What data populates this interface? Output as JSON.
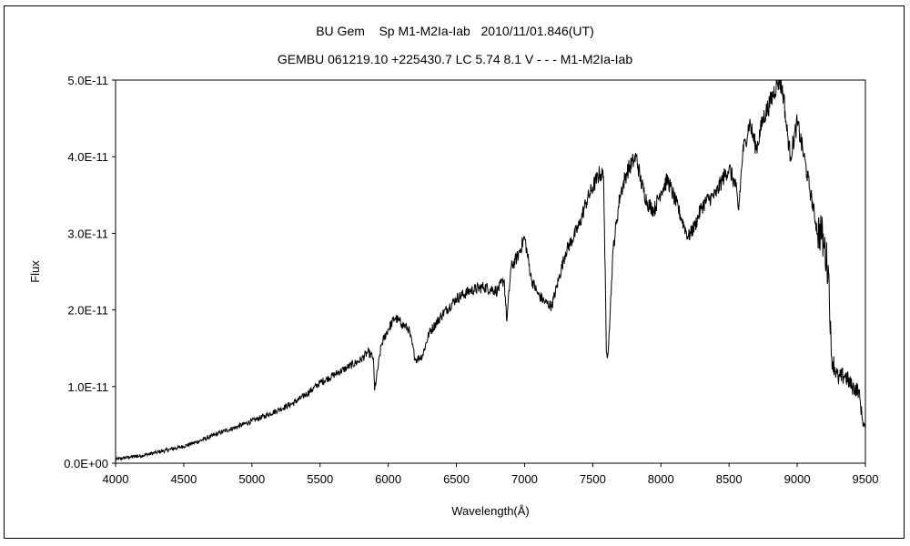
{
  "chart_data": {
    "type": "line",
    "title": "BU Gem    Sp M1-M2Ia-Iab   2010/11/01.846(UT)",
    "subtitle": "GEMBU 061219.10 +225430.7 LC 5.74 8.1 V - - - M1-M2Ia-Iab",
    "xlabel": "Wavelength(Å)",
    "ylabel": "Flux",
    "xlim": [
      4000,
      9500
    ],
    "ylim": [
      0,
      5e-11
    ],
    "x_ticks": [
      "4000",
      "4500",
      "5000",
      "5500",
      "6000",
      "6500",
      "7000",
      "7500",
      "8000",
      "8500",
      "9000",
      "9500"
    ],
    "y_ticks": [
      "0.0E+00",
      "1.0E-11",
      "2.0E-11",
      "3.0E-11",
      "4.0E-11",
      "5.0E-11"
    ],
    "grid": false,
    "legend": "none",
    "line_color": "#000000",
    "series": [
      {
        "x": [
          4000,
          4100,
          4200,
          4300,
          4400,
          4500,
          4600,
          4700,
          4800,
          4900,
          5000,
          5100,
          5200,
          5300,
          5400,
          5500,
          5600,
          5700,
          5800,
          5850,
          5890,
          5900,
          5950,
          6000,
          6050,
          6100,
          6150,
          6200,
          6250,
          6300,
          6400,
          6500,
          6600,
          6700,
          6800,
          6850,
          6870,
          6900,
          6950,
          7000,
          7050,
          7100,
          7150,
          7200,
          7250,
          7300,
          7400,
          7450,
          7500,
          7550,
          7580,
          7600,
          7610,
          7620,
          7650,
          7700,
          7750,
          7800,
          7820,
          7850,
          7900,
          7950,
          8000,
          8050,
          8100,
          8150,
          8200,
          8250,
          8300,
          8350,
          8400,
          8450,
          8500,
          8550,
          8570,
          8600,
          8620,
          8650,
          8700,
          8750,
          8800,
          8850,
          8870,
          8900,
          8920,
          8950,
          9000,
          9050,
          9100,
          9150,
          9170,
          9200,
          9230,
          9250,
          9300,
          9350,
          9400,
          9450,
          9480,
          9500
        ],
        "y": [
          5e-13,
          8e-13,
          1e-12,
          1.4e-12,
          1.8e-12,
          2.2e-12,
          2.8e-12,
          3.5e-12,
          4.2e-12,
          4.8e-12,
          5.5e-12,
          6.2e-12,
          7e-12,
          7.8e-12,
          9e-12,
          1.05e-11,
          1.15e-11,
          1.25e-11,
          1.35e-11,
          1.45e-11,
          1.38e-11,
          9.5e-12,
          1.55e-11,
          1.75e-11,
          1.9e-11,
          1.82e-11,
          1.75e-11,
          1.35e-11,
          1.4e-11,
          1.7e-11,
          1.95e-11,
          2.15e-11,
          2.25e-11,
          2.3e-11,
          2.25e-11,
          2.4e-11,
          1.85e-11,
          2.55e-11,
          2.7e-11,
          2.95e-11,
          2.4e-11,
          2.2e-11,
          2.1e-11,
          2.05e-11,
          2.4e-11,
          2.75e-11,
          3.1e-11,
          3.4e-11,
          3.6e-11,
          3.78e-11,
          3.75e-11,
          1.45e-11,
          1.4e-11,
          1.7e-11,
          2.8e-11,
          3.5e-11,
          3.8e-11,
          3.95e-11,
          4e-11,
          3.7e-11,
          3.4e-11,
          3.3e-11,
          3.55e-11,
          3.7e-11,
          3.45e-11,
          3.2e-11,
          2.95e-11,
          3.1e-11,
          3.35e-11,
          3.45e-11,
          3.5e-11,
          3.7e-11,
          3.85e-11,
          3.6e-11,
          3.3e-11,
          4.05e-11,
          4.2e-11,
          4.45e-11,
          4.1e-11,
          4.5e-11,
          4.7e-11,
          4.95e-11,
          5e-11,
          4.8e-11,
          4.4e-11,
          4e-11,
          4.45e-11,
          4e-11,
          3.5e-11,
          3e-11,
          3.05e-11,
          2.8e-11,
          2.5e-11,
          1.4e-11,
          1.1e-11,
          1.15e-11,
          1e-11,
          9.5e-12,
          5.5e-12,
          4.5e-12
        ]
      }
    ]
  }
}
